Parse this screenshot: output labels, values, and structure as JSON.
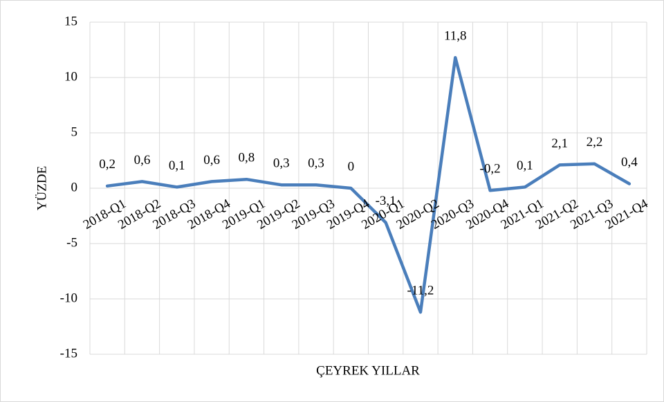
{
  "chart_data": {
    "type": "line",
    "x_label": "ÇEYREK YILLAR",
    "y_label": "YÜZDE",
    "categories": [
      "2018-Q1",
      "2018-Q2",
      "2018-Q3",
      "2018-Q4",
      "2019-Q1",
      "2019-Q2",
      "2019-Q3",
      "2019-Q4",
      "2020-Q1",
      "2020-Q2",
      "2020-Q3",
      "2020-Q4",
      "2021-Q1",
      "2021-Q2",
      "2021-Q3",
      "2021-Q4"
    ],
    "values": [
      0.2,
      0.6,
      0.1,
      0.6,
      0.8,
      0.3,
      0.3,
      0,
      -3.1,
      -11.2,
      11.8,
      -0.2,
      0.1,
      2.1,
      2.2,
      0.4
    ],
    "value_labels": [
      "0,2",
      "0,6",
      "0,1",
      "0,6",
      "0,8",
      "0,3",
      "0,3",
      "0",
      "-3,1",
      "-11,2",
      "11,8",
      "-0,2",
      "0,1",
      "2,1",
      "2,2",
      "0,4"
    ],
    "color": "#4a7ebb",
    "ylim": [
      -15,
      15
    ],
    "yticks": [
      -15,
      -10,
      -5,
      0,
      5,
      10,
      15
    ],
    "grid": true
  }
}
